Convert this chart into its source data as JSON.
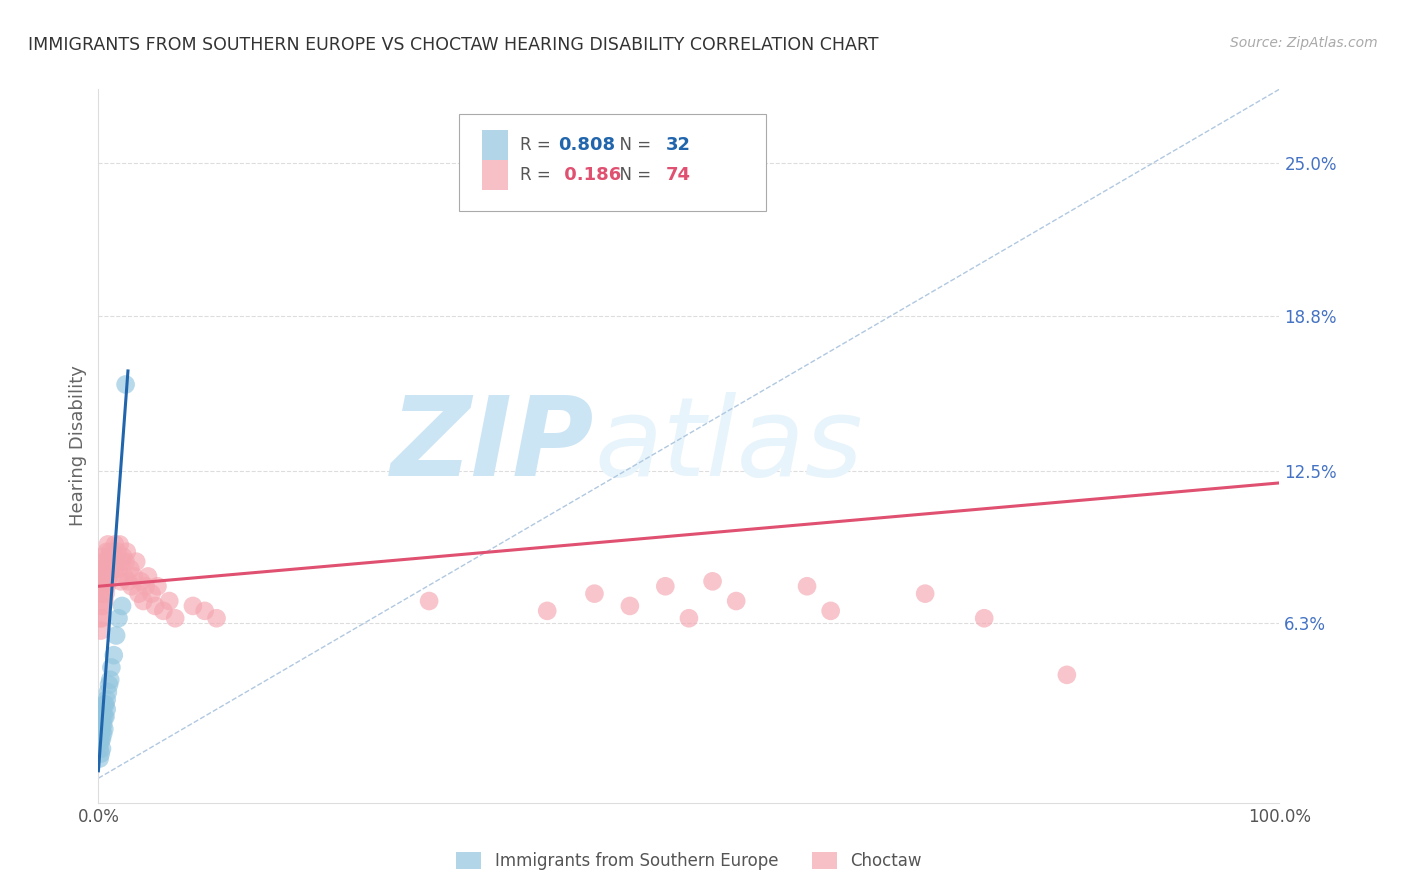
{
  "title": "IMMIGRANTS FROM SOUTHERN EUROPE VS CHOCTAW HEARING DISABILITY CORRELATION CHART",
  "source": "Source: ZipAtlas.com",
  "ylabel": "Hearing Disability",
  "y_tick_labels_right": [
    "25.0%",
    "18.8%",
    "12.5%",
    "6.3%"
  ],
  "y_tick_values_right": [
    0.25,
    0.188,
    0.125,
    0.063
  ],
  "legend_blue_r": "0.808",
  "legend_blue_n": "32",
  "legend_pink_r": "0.186",
  "legend_pink_n": "74",
  "legend_label_blue": "Immigrants from Southern Europe",
  "legend_label_pink": "Choctaw",
  "blue_color": "#92c5de",
  "pink_color": "#f4a6b0",
  "blue_line_color": "#2166ac",
  "pink_line_color": "#e05070",
  "right_axis_color": "#4472c4",
  "watermark_color": "#cce5f5",
  "blue_scatter_x": [
    0.001,
    0.001,
    0.001,
    0.001,
    0.002,
    0.002,
    0.002,
    0.002,
    0.003,
    0.003,
    0.003,
    0.003,
    0.003,
    0.004,
    0.004,
    0.004,
    0.005,
    0.005,
    0.005,
    0.006,
    0.006,
    0.007,
    0.007,
    0.008,
    0.009,
    0.01,
    0.011,
    0.013,
    0.015,
    0.017,
    0.02,
    0.023
  ],
  "blue_scatter_y": [
    0.008,
    0.012,
    0.015,
    0.018,
    0.01,
    0.015,
    0.018,
    0.022,
    0.012,
    0.016,
    0.02,
    0.024,
    0.028,
    0.018,
    0.022,
    0.026,
    0.02,
    0.025,
    0.03,
    0.025,
    0.03,
    0.028,
    0.032,
    0.035,
    0.038,
    0.04,
    0.045,
    0.05,
    0.058,
    0.065,
    0.07,
    0.16
  ],
  "pink_scatter_x": [
    0.001,
    0.001,
    0.001,
    0.002,
    0.002,
    0.002,
    0.002,
    0.003,
    0.003,
    0.003,
    0.004,
    0.004,
    0.004,
    0.005,
    0.005,
    0.005,
    0.006,
    0.006,
    0.007,
    0.007,
    0.007,
    0.008,
    0.008,
    0.008,
    0.009,
    0.009,
    0.01,
    0.01,
    0.011,
    0.012,
    0.013,
    0.014,
    0.015,
    0.016,
    0.017,
    0.018,
    0.019,
    0.02,
    0.021,
    0.022,
    0.023,
    0.024,
    0.025,
    0.027,
    0.028,
    0.03,
    0.032,
    0.034,
    0.036,
    0.038,
    0.04,
    0.042,
    0.045,
    0.048,
    0.05,
    0.055,
    0.06,
    0.065,
    0.08,
    0.09,
    0.1,
    0.28,
    0.38,
    0.42,
    0.45,
    0.48,
    0.5,
    0.52,
    0.54,
    0.6,
    0.62,
    0.7,
    0.75,
    0.82
  ],
  "pink_scatter_y": [
    0.065,
    0.075,
    0.08,
    0.06,
    0.07,
    0.08,
    0.085,
    0.065,
    0.075,
    0.09,
    0.07,
    0.078,
    0.085,
    0.072,
    0.08,
    0.088,
    0.075,
    0.085,
    0.078,
    0.085,
    0.092,
    0.08,
    0.088,
    0.095,
    0.082,
    0.09,
    0.085,
    0.092,
    0.088,
    0.09,
    0.085,
    0.095,
    0.088,
    0.092,
    0.085,
    0.095,
    0.08,
    0.088,
    0.09,
    0.082,
    0.088,
    0.092,
    0.08,
    0.085,
    0.078,
    0.082,
    0.088,
    0.075,
    0.08,
    0.072,
    0.078,
    0.082,
    0.075,
    0.07,
    0.078,
    0.068,
    0.072,
    0.065,
    0.07,
    0.068,
    0.065,
    0.072,
    0.068,
    0.075,
    0.07,
    0.078,
    0.065,
    0.08,
    0.072,
    0.078,
    0.068,
    0.075,
    0.065,
    0.042
  ],
  "xlim": [
    0.0,
    1.0
  ],
  "ylim": [
    -0.01,
    0.28
  ],
  "background_color": "#ffffff",
  "grid_color": "#dddddd"
}
